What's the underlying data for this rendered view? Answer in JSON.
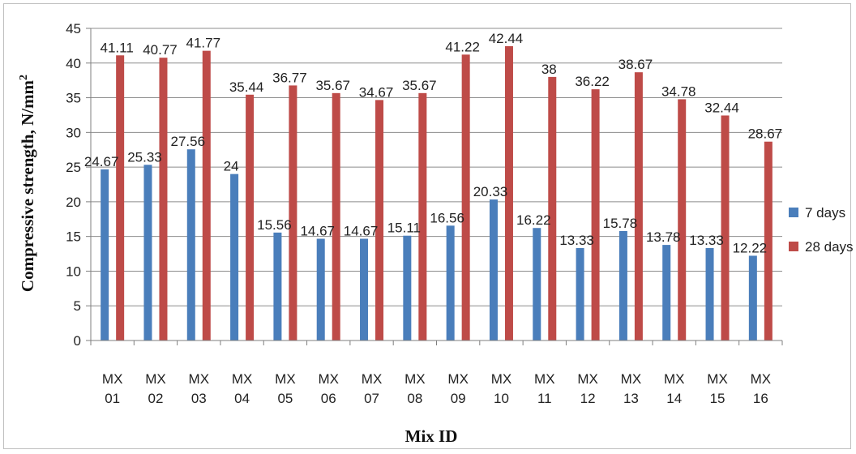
{
  "chart_data": {
    "type": "bar",
    "title": "",
    "xlabel": "Mix ID",
    "ylabel": "Compressive strength, N/mm",
    "ylabel_superscript": "2",
    "ylim": [
      0,
      45
    ],
    "yticks": [
      0,
      5,
      10,
      15,
      20,
      25,
      30,
      35,
      40,
      45
    ],
    "grid": true,
    "legend_position": "right",
    "categories": [
      [
        "MX",
        "01"
      ],
      [
        "MX",
        "02"
      ],
      [
        "MX",
        "03"
      ],
      [
        "MX",
        "04"
      ],
      [
        "MX",
        "05"
      ],
      [
        "MX",
        "06"
      ],
      [
        "MX",
        "07"
      ],
      [
        "MX",
        "08"
      ],
      [
        "MX",
        "09"
      ],
      [
        "MX",
        "10"
      ],
      [
        "MX",
        "11"
      ],
      [
        "MX",
        "12"
      ],
      [
        "MX",
        "13"
      ],
      [
        "MX",
        "14"
      ],
      [
        "MX",
        "15"
      ],
      [
        "MX",
        "16"
      ]
    ],
    "series": [
      {
        "name": "7 days",
        "color": "#4a7ebb",
        "values": [
          24.67,
          25.33,
          27.56,
          24,
          15.56,
          14.67,
          14.67,
          15.11,
          16.56,
          20.33,
          16.22,
          13.33,
          15.78,
          13.78,
          13.33,
          12.22
        ],
        "labels": [
          "24.67",
          "25.33",
          "27.56",
          "24",
          "15.56",
          "14.67",
          "14.67",
          "15.11",
          "16.56",
          "20.33",
          "16.22",
          "13.33",
          "15.78",
          "13.78",
          "13.33",
          "12.22"
        ]
      },
      {
        "name": "28 days",
        "color": "#be4b48",
        "values": [
          41.11,
          40.77,
          41.77,
          35.44,
          36.77,
          35.67,
          34.67,
          35.67,
          41.22,
          42.44,
          38,
          36.22,
          38.67,
          34.78,
          32.44,
          28.67
        ],
        "labels": [
          "41.11",
          "40.77",
          "41.77",
          "35.44",
          "36.77",
          "35.67",
          "34.67",
          "35.67",
          "41.22",
          "42.44",
          "38",
          "36.22",
          "38.67",
          "34.78",
          "32.44",
          "28.67"
        ]
      }
    ]
  }
}
